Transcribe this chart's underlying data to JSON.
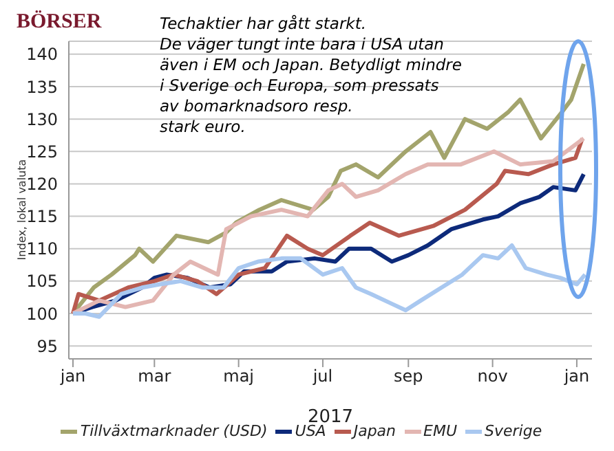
{
  "chart_data": {
    "type": "line",
    "title": "BÖRSER",
    "xlabel": "2017",
    "ylabel": "Index, lokal valuta",
    "annotations": [
      "Techaktier har gått starkt.\nDe väger tungt inte bara i USA utan\näven i EM och Japan. Betydligt mindre\ni Sverige och Europa, som pressats\nav bomarknadsoro resp.\nstark euro."
    ],
    "xlim": [
      "2016-12-29",
      "2018-01-12"
    ],
    "xticks": [
      {
        "value": "2017-01-01",
        "label": "jan"
      },
      {
        "value": "2017-03-01",
        "label": "mar"
      },
      {
        "value": "2017-05-01",
        "label": "maj"
      },
      {
        "value": "2017-07-01",
        "label": "jul"
      },
      {
        "value": "2017-09-01",
        "label": "sep"
      },
      {
        "value": "2017-11-01",
        "label": "nov"
      },
      {
        "value": "2018-01-01",
        "label": "jan"
      }
    ],
    "ylim": [
      93,
      142
    ],
    "yticks": [
      95,
      100,
      105,
      110,
      115,
      120,
      125,
      130,
      135,
      140
    ],
    "grid": "y",
    "legend": "bottom",
    "marker": "none",
    "line_style": "solid",
    "series": [
      {
        "name": "Tillväxtmarknader (USD)",
        "color": "#a3a46c",
        "x": [
          "2017-01-01",
          "2017-01-16",
          "2017-01-29",
          "2017-02-15",
          "2017-02-18",
          "2017-02-28",
          "2017-03-17",
          "2017-04-09",
          "2017-04-22",
          "2017-04-29",
          "2017-05-16",
          "2017-06-01",
          "2017-06-24",
          "2017-07-05",
          "2017-07-14",
          "2017-07-25",
          "2017-08-10",
          "2017-08-30",
          "2017-09-17",
          "2017-09-27",
          "2017-10-12",
          "2017-10-28",
          "2017-11-12",
          "2017-11-21",
          "2017-12-06",
          "2017-12-21",
          "2017-12-28",
          "2018-01-06"
        ],
        "values": [
          100,
          104,
          106,
          109,
          110,
          108,
          112,
          111,
          112.5,
          114,
          116,
          117.5,
          116,
          118,
          122,
          123,
          121,
          125,
          128,
          124,
          130,
          128.5,
          131,
          133,
          127,
          131,
          133,
          138.5
        ]
      },
      {
        "name": "USA",
        "color": "#0d2a7a",
        "x": [
          "2017-01-01",
          "2017-01-15",
          "2017-02-01",
          "2017-02-20",
          "2017-03-01",
          "2017-03-10",
          "2017-03-25",
          "2017-04-10",
          "2017-04-25",
          "2017-05-05",
          "2017-05-25",
          "2017-06-05",
          "2017-06-25",
          "2017-07-10",
          "2017-07-20",
          "2017-08-05",
          "2017-08-20",
          "2017-09-01",
          "2017-09-15",
          "2017-10-02",
          "2017-10-25",
          "2017-11-05",
          "2017-11-21",
          "2017-12-05",
          "2017-12-15",
          "2017-12-31",
          "2018-01-06"
        ],
        "values": [
          100,
          101,
          102,
          104,
          105.5,
          106,
          105.5,
          104,
          104.5,
          106.5,
          106.5,
          108,
          108.5,
          108,
          110,
          110,
          108,
          109,
          110.5,
          113,
          114.5,
          115,
          117,
          118,
          119.5,
          119,
          121.5
        ]
      },
      {
        "name": "Japan",
        "color": "#b85a4f",
        "x": [
          "2017-01-01",
          "2017-01-05",
          "2017-01-20",
          "2017-02-10",
          "2017-03-01",
          "2017-03-15",
          "2017-04-01",
          "2017-04-15",
          "2017-05-01",
          "2017-05-20",
          "2017-06-05",
          "2017-06-20",
          "2017-07-01",
          "2017-07-21",
          "2017-08-04",
          "2017-08-25",
          "2017-09-19",
          "2017-10-12",
          "2017-11-04",
          "2017-11-10",
          "2017-11-27",
          "2017-12-15",
          "2017-12-31",
          "2018-01-05"
        ],
        "values": [
          100,
          103,
          102,
          104,
          105,
          106,
          105,
          103,
          106,
          107,
          112,
          110,
          109,
          112,
          114,
          112,
          113.5,
          116,
          120,
          122,
          121.5,
          123,
          124,
          127
        ]
      },
      {
        "name": "EMU",
        "color": "#e3b6b2",
        "x": [
          "2017-01-01",
          "2017-01-20",
          "2017-02-08",
          "2017-02-28",
          "2017-03-15",
          "2017-03-27",
          "2017-04-16",
          "2017-04-22",
          "2017-05-10",
          "2017-06-01",
          "2017-06-20",
          "2017-07-05",
          "2017-07-15",
          "2017-07-25",
          "2017-08-10",
          "2017-08-30",
          "2017-09-15",
          "2017-10-09",
          "2017-11-02",
          "2017-11-21",
          "2017-12-15",
          "2018-01-06"
        ],
        "values": [
          100,
          102,
          101,
          102,
          106,
          108,
          106,
          113,
          115,
          116,
          115,
          119,
          120,
          118,
          119,
          121.5,
          123,
          123,
          125,
          123,
          123.5,
          127
        ]
      },
      {
        "name": "Sverige",
        "color": "#a9c8f0",
        "x": [
          "2017-01-01",
          "2017-01-10",
          "2017-01-20",
          "2017-02-05",
          "2017-02-20",
          "2017-03-05",
          "2017-03-20",
          "2017-04-05",
          "2017-04-20",
          "2017-05-01",
          "2017-05-15",
          "2017-06-01",
          "2017-06-15",
          "2017-07-01",
          "2017-07-15",
          "2017-07-25",
          "2017-08-05",
          "2017-08-20",
          "2017-08-30",
          "2017-09-10",
          "2017-09-25",
          "2017-10-10",
          "2017-10-25",
          "2017-11-05",
          "2017-11-15",
          "2017-11-25",
          "2017-12-10",
          "2017-12-20",
          "2018-01-01",
          "2018-01-07"
        ],
        "values": [
          100,
          100,
          99.5,
          103,
          104,
          104.5,
          105,
          104,
          104,
          107,
          108,
          108.5,
          108.5,
          106,
          107,
          104,
          103,
          101.5,
          100.5,
          102,
          104,
          106,
          109,
          108.5,
          110.5,
          107,
          106,
          105.5,
          104.5,
          106
        ]
      }
    ]
  }
}
